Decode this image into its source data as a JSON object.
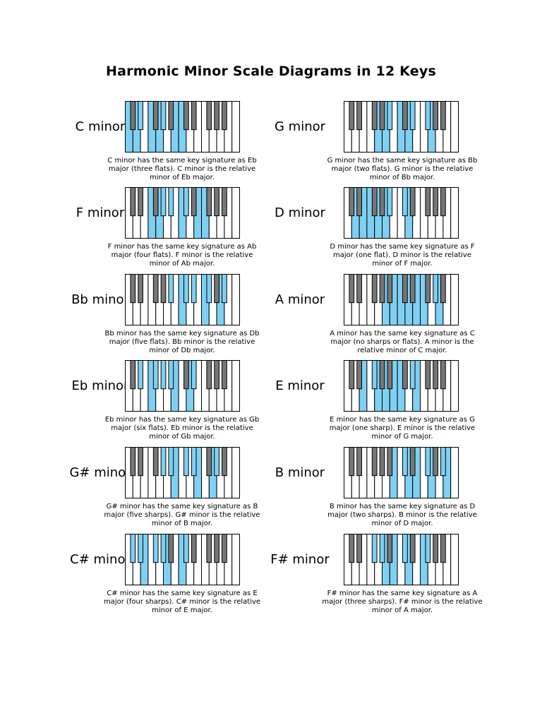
{
  "title": "Harmonic Minor Scale Diagrams in 12 Keys",
  "colors": {
    "highlight": "#7fd0f2",
    "black_key": "#777777",
    "white_key": "#ffffff",
    "outline": "#000000"
  },
  "scales": [
    {
      "name": "C minor",
      "highlighted_keys": [
        "C",
        "D",
        "Eb",
        "F",
        "G",
        "Ab",
        "B",
        "C"
      ],
      "caption": [
        "C minor has the same key signature as Eb",
        "major (three flats). C minor is the relative",
        "minor of Eb major."
      ]
    },
    {
      "name": "G minor",
      "highlighted_keys": [
        "G",
        "A",
        "Bb",
        "C",
        "D",
        "Eb",
        "F#",
        "G"
      ],
      "caption": [
        "G minor has the same key signature as Bb",
        "major (two flats). G minor is the relative",
        "minor of Bb major."
      ]
    },
    {
      "name": "F minor",
      "highlighted_keys": [
        "F",
        "G",
        "Ab",
        "Bb",
        "C",
        "Db",
        "E",
        "F"
      ],
      "caption": [
        "F minor has the same key signature as Ab",
        "major (four flats). F minor is the relative",
        "minor of Ab major."
      ]
    },
    {
      "name": "D minor",
      "highlighted_keys": [
        "D",
        "E",
        "F",
        "G",
        "A",
        "Bb",
        "C#",
        "D"
      ],
      "caption": [
        "D minor has the same key signature as F",
        "major (one flat). D minor is the relative",
        "minor of F major."
      ]
    },
    {
      "name": "Bb minor",
      "highlighted_keys": [
        "Bb",
        "C",
        "Db",
        "Eb",
        "F",
        "Gb",
        "A",
        "Bb"
      ],
      "caption": [
        "Bb minor has the same key signature as Db",
        "major (five flats). Bb minor is the relative",
        "minor of Db major."
      ]
    },
    {
      "name": "A minor",
      "highlighted_keys": [
        "A",
        "B",
        "C",
        "D",
        "E",
        "F",
        "G#",
        "A"
      ],
      "caption": [
        "A minor has the same key signature as C",
        "major (no sharps or flats). A minor is the",
        "relative minor of C major."
      ]
    },
    {
      "name": "Eb minor",
      "highlighted_keys": [
        "Eb",
        "F",
        "Gb",
        "Ab",
        "Bb",
        "B",
        "D",
        "Eb"
      ],
      "caption": [
        "Eb minor has the same key signature as Gb",
        "major (six flats). Eb minor is the relative",
        "minor of Gb major."
      ]
    },
    {
      "name": "E minor",
      "highlighted_keys": [
        "E",
        "F#",
        "G",
        "A",
        "B",
        "C",
        "D#",
        "E"
      ],
      "caption": [
        "E minor has the same key signature as G",
        "major (one sharp). E minor is the relative",
        "minor of G major."
      ]
    },
    {
      "name": "G# minor",
      "highlighted_keys": [
        "G#",
        "A#",
        "B",
        "C#",
        "D#",
        "E",
        "G",
        "G#"
      ],
      "caption": [
        "G# minor has the same key signature as B",
        "major (five sharps). G# minor is the relative",
        "minor of B major."
      ]
    },
    {
      "name": "B minor",
      "highlighted_keys": [
        "B",
        "C#",
        "D",
        "E",
        "F#",
        "G",
        "A#",
        "B"
      ],
      "caption": [
        "B minor has the same key signature as D",
        "major (two sharps). B minor is the relative",
        "minor of D major."
      ]
    },
    {
      "name": "C# minor",
      "highlighted_keys": [
        "C#",
        "D#",
        "E",
        "F#",
        "G#",
        "A",
        "C",
        "C#"
      ],
      "caption": [
        "C# minor has the same key signature as E",
        "major (four sharps). C# minor is the relative",
        "minor of E major."
      ]
    },
    {
      "name": "F# minor",
      "highlighted_keys": [
        "F#",
        "G#",
        "A",
        "B",
        "C#",
        "D",
        "F",
        "F#"
      ],
      "caption": [
        "F# minor has the same key signature as A",
        "major (three sharps). F# minor is the relative",
        "minor of A major."
      ]
    }
  ]
}
